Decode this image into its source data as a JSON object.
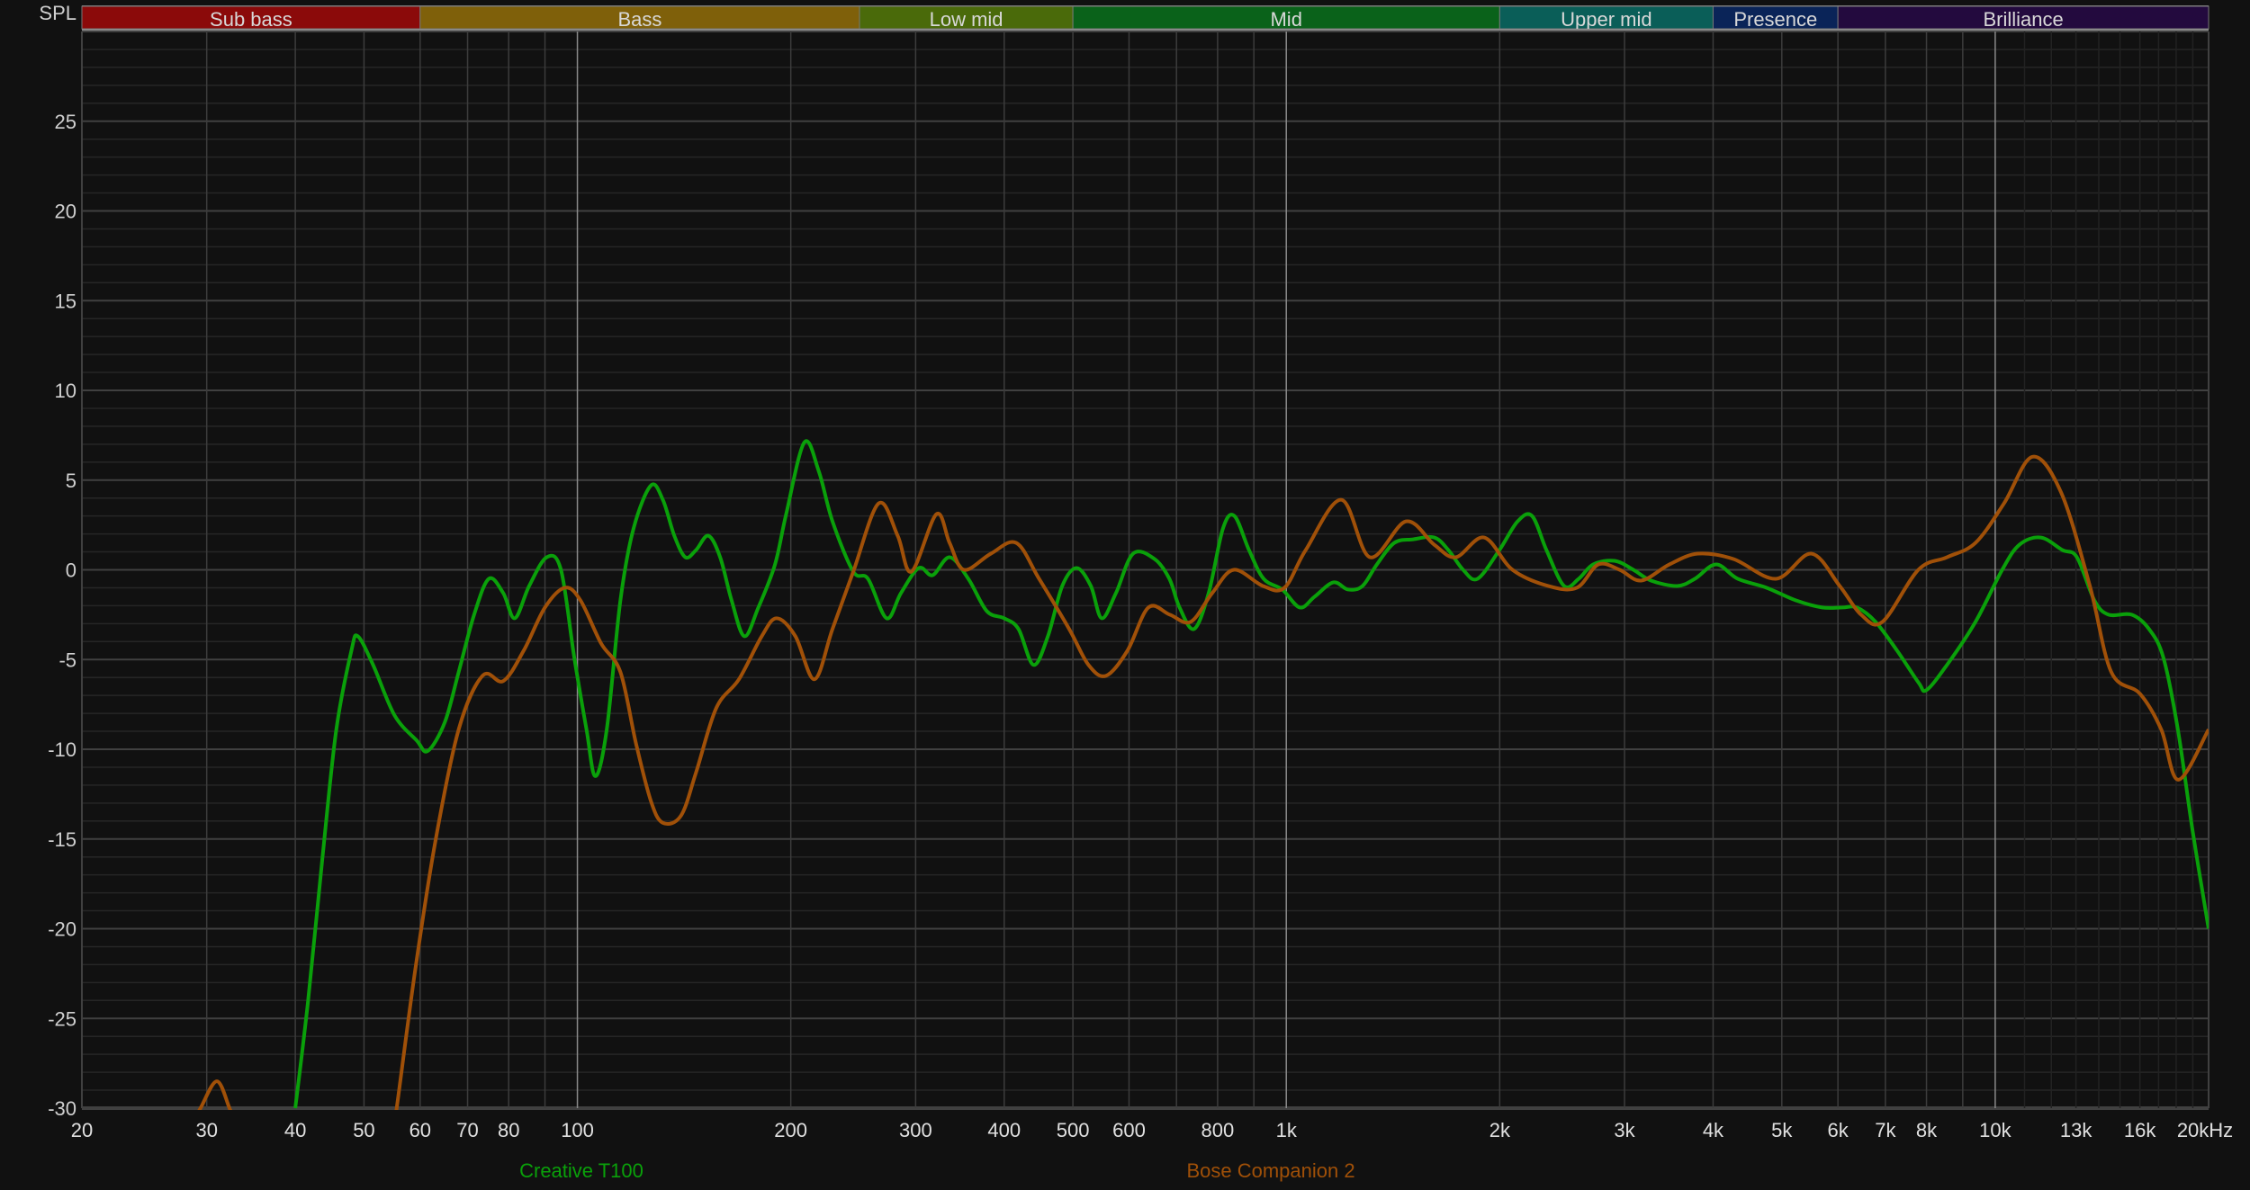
{
  "chart_data": {
    "type": "line",
    "ylabel": "SPL",
    "x_scale": "log",
    "xlim": [
      20,
      20000
    ],
    "ylim": [
      -30,
      30
    ],
    "grid": true,
    "legend_placement": "bottom",
    "y_ticks": [
      25,
      20,
      15,
      10,
      5,
      0,
      -5,
      -10,
      -15,
      -20,
      -25,
      -30
    ],
    "x_ticks": [
      {
        "value": 20,
        "label": "20"
      },
      {
        "value": 30,
        "label": "30"
      },
      {
        "value": 40,
        "label": "40"
      },
      {
        "value": 50,
        "label": "50"
      },
      {
        "value": 60,
        "label": "60"
      },
      {
        "value": 70,
        "label": "70"
      },
      {
        "value": 80,
        "label": "80"
      },
      {
        "value": 100,
        "label": "100"
      },
      {
        "value": 200,
        "label": "200"
      },
      {
        "value": 300,
        "label": "300"
      },
      {
        "value": 400,
        "label": "400"
      },
      {
        "value": 500,
        "label": "500"
      },
      {
        "value": 600,
        "label": "600"
      },
      {
        "value": 800,
        "label": "800"
      },
      {
        "value": 1000,
        "label": "1k"
      },
      {
        "value": 2000,
        "label": "2k"
      },
      {
        "value": 3000,
        "label": "3k"
      },
      {
        "value": 4000,
        "label": "4k"
      },
      {
        "value": 5000,
        "label": "5k"
      },
      {
        "value": 6000,
        "label": "6k"
      },
      {
        "value": 7000,
        "label": "7k"
      },
      {
        "value": 8000,
        "label": "8k"
      },
      {
        "value": 10000,
        "label": "10k"
      },
      {
        "value": 13000,
        "label": "13k",
        "dim": true
      },
      {
        "value": 16000,
        "label": "16k",
        "dim": true
      },
      {
        "value": 20000,
        "label": "20kHz"
      }
    ],
    "bands": [
      {
        "label": "Sub bass",
        "from": 20,
        "to": 60,
        "color": "#8b0a0a"
      },
      {
        "label": "Bass",
        "from": 60,
        "to": 250,
        "color": "#7f600a"
      },
      {
        "label": "Low mid",
        "from": 250,
        "to": 500,
        "color": "#4a6a0a"
      },
      {
        "label": "Mid",
        "from": 500,
        "to": 2000,
        "color": "#0a621a"
      },
      {
        "label": "Upper mid",
        "from": 2000,
        "to": 4000,
        "color": "#0a5e58"
      },
      {
        "label": "Presence",
        "from": 4000,
        "to": 6000,
        "color": "#0a2458"
      },
      {
        "label": "Brilliance",
        "from": 6000,
        "to": 20000,
        "color": "#230a3e"
      }
    ],
    "series": [
      {
        "name": "Creative T100",
        "color": "#0aa00a",
        "points": [
          [
            40,
            -30
          ],
          [
            41.7,
            -24
          ],
          [
            43.7,
            -16
          ],
          [
            45.7,
            -8.9
          ],
          [
            48,
            -4.5
          ],
          [
            49,
            -3.7
          ],
          [
            51.5,
            -5.3
          ],
          [
            55.2,
            -8.1
          ],
          [
            59.3,
            -9.5
          ],
          [
            61.5,
            -10.1
          ],
          [
            65,
            -8.5
          ],
          [
            68,
            -5.7
          ],
          [
            71.5,
            -2.5
          ],
          [
            75,
            -0.5
          ],
          [
            78.6,
            -1.3
          ],
          [
            81.6,
            -2.7
          ],
          [
            85.5,
            -0.9
          ],
          [
            90.5,
            0.7
          ],
          [
            94.8,
            0
          ],
          [
            99,
            -4.9
          ],
          [
            103,
            -8.9
          ],
          [
            106,
            -11.5
          ],
          [
            110,
            -8.9
          ],
          [
            115,
            -1.7
          ],
          [
            120,
            2.3
          ],
          [
            127,
            4.7
          ],
          [
            132,
            3.9
          ],
          [
            137,
            1.9
          ],
          [
            142,
            0.7
          ],
          [
            147,
            1.1
          ],
          [
            153,
            1.9
          ],
          [
            159,
            0.7
          ],
          [
            165,
            -1.7
          ],
          [
            172,
            -3.7
          ],
          [
            180,
            -2.1
          ],
          [
            190,
            0.3
          ],
          [
            197,
            3.1
          ],
          [
            209,
            7.1
          ],
          [
            219,
            5.5
          ],
          [
            229,
            2.7
          ],
          [
            245,
            -0.1
          ],
          [
            257,
            -0.5
          ],
          [
            273,
            -2.7
          ],
          [
            286,
            -1.3
          ],
          [
            303,
            0.1
          ],
          [
            317,
            -0.3
          ],
          [
            335,
            0.7
          ],
          [
            356,
            -0.5
          ],
          [
            378,
            -2.3
          ],
          [
            400,
            -2.7
          ],
          [
            419,
            -3.3
          ],
          [
            440,
            -5.3
          ],
          [
            461,
            -3.7
          ],
          [
            483,
            -0.9
          ],
          [
            506,
            0.1
          ],
          [
            530,
            -0.9
          ],
          [
            549,
            -2.7
          ],
          [
            575,
            -1.3
          ],
          [
            608,
            0.9
          ],
          [
            652,
            0.6
          ],
          [
            684,
            -0.5
          ],
          [
            707,
            -2.1
          ],
          [
            741,
            -3.3
          ],
          [
            777,
            -1.3
          ],
          [
            814,
            2.3
          ],
          [
            845,
            3.0
          ],
          [
            886,
            1.1
          ],
          [
            929,
            -0.5
          ],
          [
            987,
            -1.1
          ],
          [
            1045,
            -2.1
          ],
          [
            1096,
            -1.5
          ],
          [
            1165,
            -0.7
          ],
          [
            1222,
            -1.1
          ],
          [
            1281,
            -0.9
          ],
          [
            1342,
            0.3
          ],
          [
            1420,
            1.5
          ],
          [
            1510,
            1.7
          ],
          [
            1617,
            1.8
          ],
          [
            1693,
            1.1
          ],
          [
            1776,
            0
          ],
          [
            1861,
            -0.5
          ],
          [
            1998,
            1.1
          ],
          [
            2120,
            2.7
          ],
          [
            2222,
            3.0
          ],
          [
            2328,
            1.1
          ],
          [
            2465,
            -0.9
          ],
          [
            2585,
            -0.5
          ],
          [
            2709,
            0.3
          ],
          [
            2905,
            0.5
          ],
          [
            3088,
            0
          ],
          [
            3270,
            -0.6
          ],
          [
            3560,
            -0.9
          ],
          [
            3770,
            -0.5
          ],
          [
            4040,
            0.3
          ],
          [
            4333,
            -0.5
          ],
          [
            4760,
            -1
          ],
          [
            5230,
            -1.7
          ],
          [
            5700,
            -2.1
          ],
          [
            6090,
            -2.1
          ],
          [
            6380,
            -2.1
          ],
          [
            6780,
            -2.9
          ],
          [
            7270,
            -4.5
          ],
          [
            7800,
            -6.3
          ],
          [
            8000,
            -6.7
          ],
          [
            8550,
            -5.3
          ],
          [
            9380,
            -2.9
          ],
          [
            10230,
            0
          ],
          [
            10820,
            1.4
          ],
          [
            11600,
            1.8
          ],
          [
            12440,
            1.1
          ],
          [
            13040,
            0.7
          ],
          [
            13800,
            -1.7
          ],
          [
            14450,
            -2.5
          ],
          [
            15580,
            -2.5
          ],
          [
            16480,
            -3.3
          ],
          [
            17270,
            -4.9
          ],
          [
            18100,
            -8.9
          ],
          [
            18980,
            -14.5
          ],
          [
            20000,
            -20
          ]
        ]
      },
      {
        "name": "Bose Companion 2",
        "color": "#a05008",
        "points": [
          [
            28.5,
            -31
          ],
          [
            29.4,
            -30
          ],
          [
            31,
            -28.5
          ],
          [
            32.3,
            -30
          ],
          [
            33,
            -31
          ],
          [
            null,
            null
          ],
          [
            55,
            -31
          ],
          [
            55.6,
            -30
          ],
          [
            59,
            -22.4
          ],
          [
            63,
            -15.2
          ],
          [
            68,
            -8.9
          ],
          [
            73.5,
            -5.9
          ],
          [
            78.6,
            -6.2
          ],
          [
            84,
            -4.5
          ],
          [
            90,
            -2.1
          ],
          [
            96,
            -1.0
          ],
          [
            101,
            -1.7
          ],
          [
            108,
            -4.1
          ],
          [
            115,
            -5.7
          ],
          [
            121,
            -9.7
          ],
          [
            127,
            -12.9
          ],
          [
            132,
            -14.1
          ],
          [
            140,
            -13.7
          ],
          [
            147,
            -11.3
          ],
          [
            157,
            -7.7
          ],
          [
            169,
            -6.1
          ],
          [
            182,
            -3.7
          ],
          [
            191,
            -2.7
          ],
          [
            203,
            -3.7
          ],
          [
            216,
            -6.1
          ],
          [
            229,
            -3.3
          ],
          [
            245,
            -0.1
          ],
          [
            266,
            3.7
          ],
          [
            283,
            1.9
          ],
          [
            296,
            -0.1
          ],
          [
            321,
            3.1
          ],
          [
            335,
            1.5
          ],
          [
            351,
            0
          ],
          [
            383,
            0.9
          ],
          [
            416,
            1.5
          ],
          [
            448,
            -0.5
          ],
          [
            494,
            -3.3
          ],
          [
            526,
            -5.3
          ],
          [
            557,
            -5.9
          ],
          [
            597,
            -4.5
          ],
          [
            639,
            -2.1
          ],
          [
            685,
            -2.5
          ],
          [
            733,
            -2.9
          ],
          [
            786,
            -1.3
          ],
          [
            843,
            0
          ],
          [
            927,
            -0.9
          ],
          [
            994,
            -1
          ],
          [
            1065,
            1.1
          ],
          [
            1196,
            3.9
          ],
          [
            1312,
            0.7
          ],
          [
            1475,
            2.7
          ],
          [
            1617,
            1.4
          ],
          [
            1734,
            0.7
          ],
          [
            1901,
            1.8
          ],
          [
            2085,
            0
          ],
          [
            2341,
            -0.9
          ],
          [
            2569,
            -1
          ],
          [
            2755,
            0.3
          ],
          [
            2953,
            0
          ],
          [
            3166,
            -0.6
          ],
          [
            3470,
            0.3
          ],
          [
            3806,
            0.9
          ],
          [
            4273,
            0.6
          ],
          [
            4907,
            -0.5
          ],
          [
            5503,
            0.9
          ],
          [
            6035,
            -0.9
          ],
          [
            6469,
            -2.5
          ],
          [
            6934,
            -2.9
          ],
          [
            7790,
            0
          ],
          [
            8548,
            0.7
          ],
          [
            9378,
            1.5
          ],
          [
            10290,
            3.7
          ],
          [
            11290,
            6.3
          ],
          [
            12390,
            4.3
          ],
          [
            13600,
            -0.9
          ],
          [
            14580,
            -5.7
          ],
          [
            16000,
            -6.9
          ],
          [
            17150,
            -8.9
          ],
          [
            18130,
            -11.7
          ],
          [
            20000,
            -8.9
          ]
        ]
      }
    ]
  }
}
